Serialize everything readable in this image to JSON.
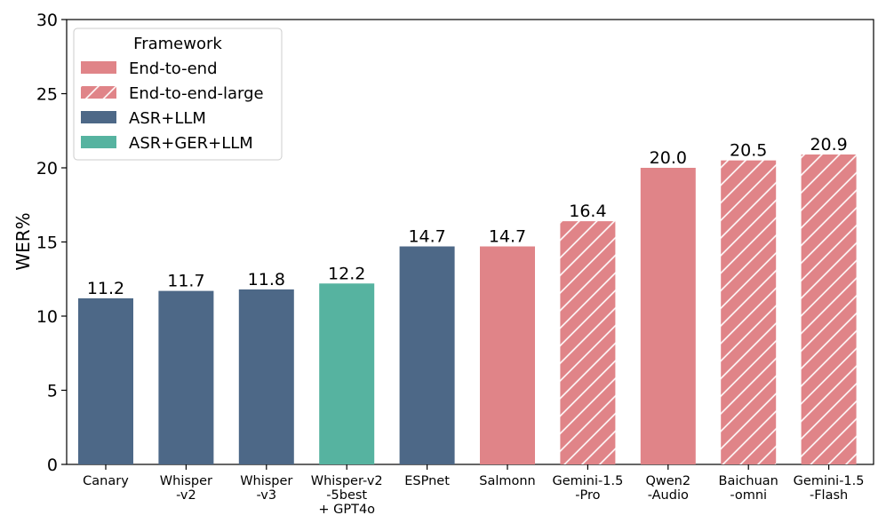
{
  "chart_data": {
    "type": "bar",
    "categories": [
      [
        "Canary"
      ],
      [
        "Whisper",
        "-v2"
      ],
      [
        "Whisper",
        "-v3"
      ],
      [
        "Whisper-v2",
        "-5best",
        "+ GPT4o"
      ],
      [
        "ESPnet"
      ],
      [
        "Salmonn"
      ],
      [
        "Gemini-1.5",
        "-Pro"
      ],
      [
        "Qwen2",
        "-Audio"
      ],
      [
        "Baichuan",
        "-omni"
      ],
      [
        "Gemini-1.5",
        "-Flash"
      ]
    ],
    "values": [
      11.2,
      11.7,
      11.8,
      12.2,
      14.7,
      14.7,
      16.4,
      20.0,
      20.5,
      20.9
    ],
    "value_labels": [
      "11.2",
      "11.7",
      "11.8",
      "12.2",
      "14.7",
      "14.7",
      "16.4",
      "20.0",
      "20.5",
      "20.9"
    ],
    "framework": [
      "ASR+LLM",
      "ASR+LLM",
      "ASR+LLM",
      "ASR+GER+LLM",
      "ASR+LLM",
      "End-to-end",
      "End-to-end-large",
      "End-to-end",
      "End-to-end-large",
      "End-to-end-large"
    ],
    "ylabel": "WER%",
    "ylim": [
      0,
      30
    ],
    "yticks": [
      0,
      5,
      10,
      15,
      20,
      25,
      30
    ],
    "grid": false,
    "legend": {
      "title": "Framework",
      "placement": "top-left",
      "entries": [
        {
          "label": "End-to-end",
          "color": "#e08488",
          "hatched": false
        },
        {
          "label": "End-to-end-large",
          "color": "#e08488",
          "hatched": true
        },
        {
          "label": "ASR+LLM",
          "color": "#4d6887",
          "hatched": false
        },
        {
          "label": "ASR+GER+LLM",
          "color": "#56b3a0",
          "hatched": false
        }
      ]
    },
    "colors": {
      "End-to-end": "#e08488",
      "End-to-end-large": "#e08488",
      "ASR+LLM": "#4d6887",
      "ASR+GER+LLM": "#56b3a0"
    }
  }
}
